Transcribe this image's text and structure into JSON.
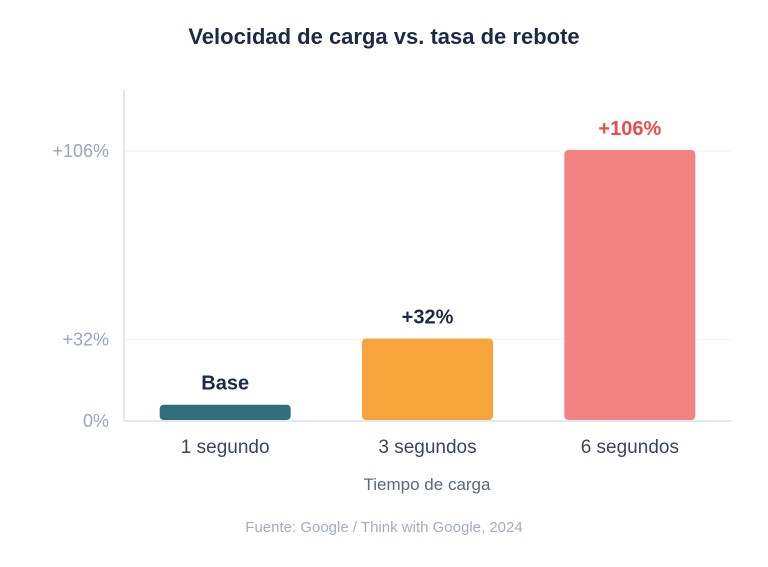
{
  "chart_data": {
    "type": "bar",
    "title": "Velocidad de carga vs. tasa de rebote",
    "xlabel": "Tiempo de carga",
    "ylabel": "",
    "categories": [
      "1 segundo",
      "3 segundos",
      "6 segundos"
    ],
    "values": [
      6,
      32,
      106
    ],
    "data_labels": [
      "Base",
      "+32%",
      "+106%"
    ],
    "colors": [
      "#2e6f7b",
      "#f8a43c",
      "#f38383"
    ],
    "data_label_colors": [
      "#1e2a44",
      "#1e2a44",
      "#ef4b4b"
    ],
    "yticks": [
      {
        "value": 0,
        "label": "0%"
      },
      {
        "value": 32,
        "label": "+32%"
      },
      {
        "value": 106,
        "label": "+106%"
      }
    ],
    "ylim": [
      0,
      150
    ],
    "grid": true,
    "legend": "none",
    "source": "Fuente: Google / Think with Google, 2024"
  }
}
